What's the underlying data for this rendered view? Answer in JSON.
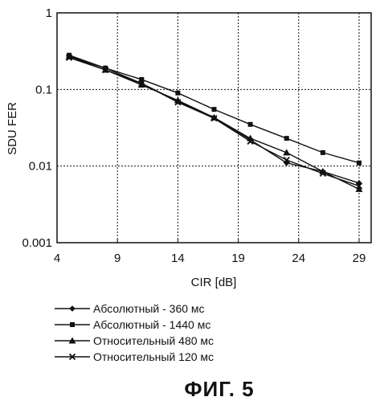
{
  "chart_data": {
    "type": "line",
    "xlabel": "CIR [dB]",
    "ylabel": "SDU FER",
    "xlim": [
      4,
      30
    ],
    "ylim": [
      0.001,
      1
    ],
    "yscale": "log",
    "grid": true,
    "x_ticks": [
      4,
      9,
      14,
      19,
      24,
      29
    ],
    "x_tick_labels": [
      "4",
      "9",
      "14",
      "19",
      "24",
      "29"
    ],
    "y_ticks": [
      0.001,
      0.01,
      0.1,
      1
    ],
    "y_tick_labels": [
      "0.001",
      "0.01",
      "0.1",
      "1"
    ],
    "legend_position": "bottom",
    "series": [
      {
        "name": "Абсолютный - 360 мс",
        "marker": "diamond",
        "x": [
          5,
          8,
          11,
          14,
          17,
          20,
          23,
          26,
          29
        ],
        "y": [
          0.27,
          0.19,
          0.12,
          0.07,
          0.043,
          0.022,
          0.011,
          0.0085,
          0.006
        ]
      },
      {
        "name": "Абсолютный - 1440 мс",
        "marker": "square",
        "x": [
          5,
          8,
          11,
          14,
          17,
          20,
          23,
          26,
          29
        ],
        "y": [
          0.28,
          0.19,
          0.135,
          0.09,
          0.055,
          0.035,
          0.023,
          0.015,
          0.011
        ]
      },
      {
        "name": "Относительный 480 мс",
        "marker": "triangle",
        "x": [
          5,
          8,
          11,
          14,
          17,
          20,
          23,
          26,
          29
        ],
        "y": [
          0.27,
          0.18,
          0.115,
          0.072,
          0.043,
          0.023,
          0.015,
          0.0085,
          0.005
        ]
      },
      {
        "name": "Относительный 120 мс",
        "marker": "x",
        "x": [
          5,
          8,
          11,
          14,
          17,
          20,
          23,
          26,
          29
        ],
        "y": [
          0.26,
          0.18,
          0.12,
          0.068,
          0.042,
          0.021,
          0.012,
          0.008,
          0.0055
        ]
      }
    ]
  },
  "caption": "ФИГ. 5"
}
